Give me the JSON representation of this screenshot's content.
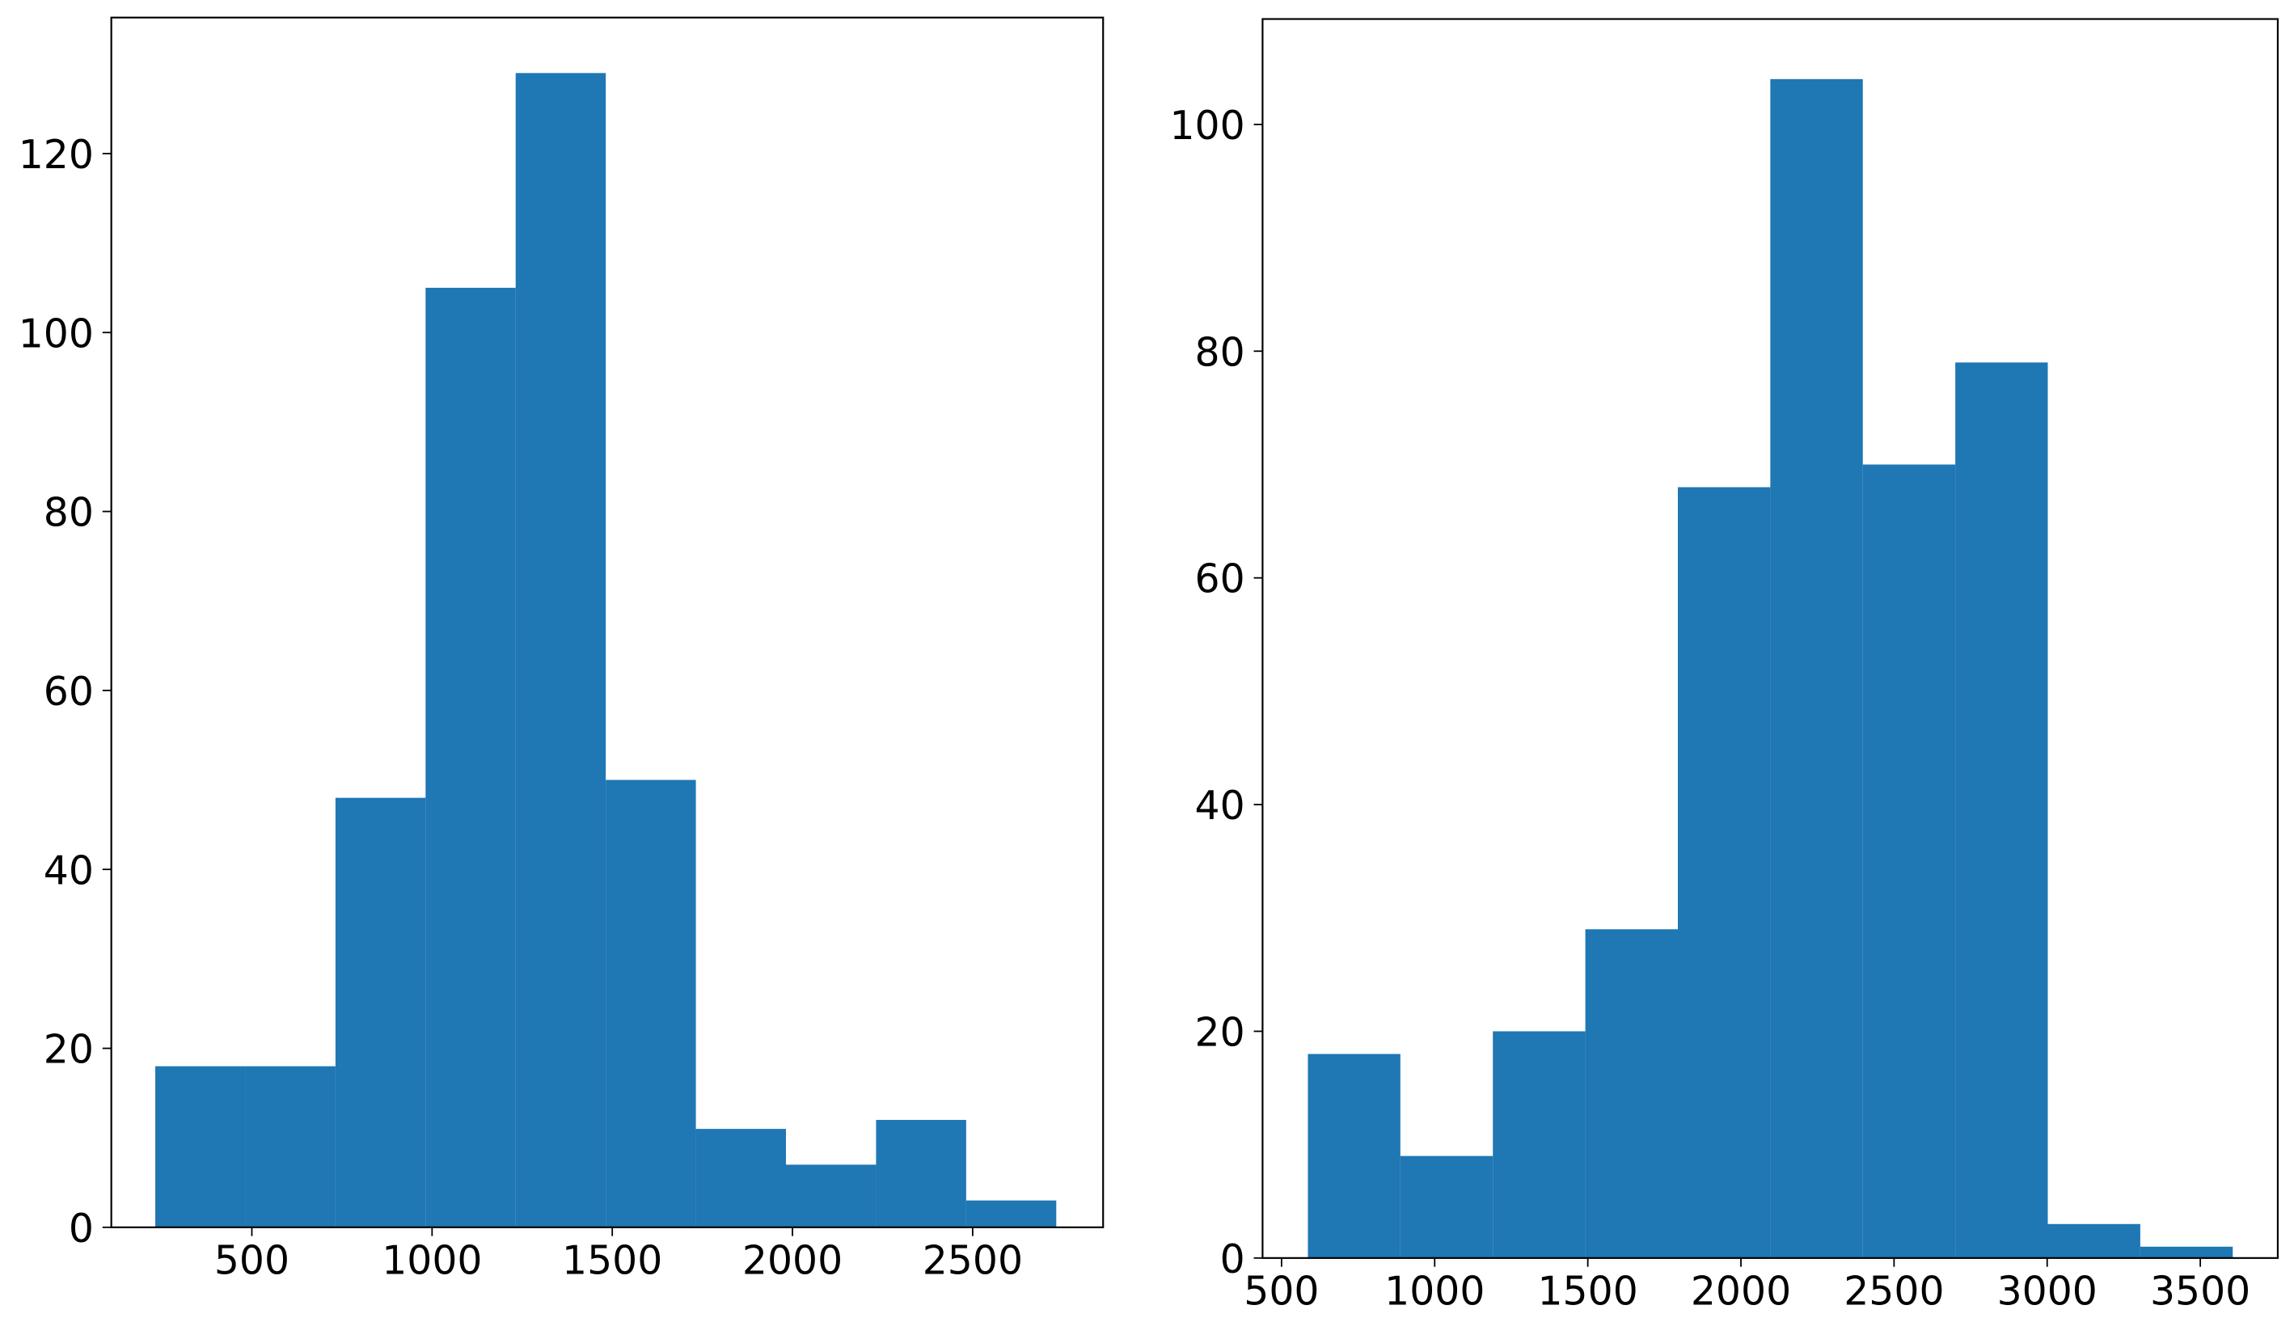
{
  "chart_data": [
    {
      "type": "histogram",
      "color": "#1f77b4",
      "bins": [
        232,
        482,
        732,
        982,
        1232,
        1482,
        1732,
        1982,
        2232,
        2482,
        2732
      ],
      "counts": [
        18,
        18,
        48,
        105,
        129,
        50,
        11,
        7,
        12,
        3
      ],
      "xlim": [
        110,
        2862
      ],
      "ylim": [
        0,
        135.2
      ],
      "xticks": [
        500,
        1000,
        1500,
        2000,
        2500
      ],
      "yticks": [
        0,
        20,
        40,
        60,
        80,
        100,
        120
      ]
    },
    {
      "type": "histogram",
      "color": "#1f77b4",
      "bins": [
        586,
        888,
        1190,
        1492,
        1794,
        2096,
        2398,
        2700,
        3002,
        3304,
        3606
      ],
      "counts": [
        18,
        9,
        20,
        29,
        68,
        104,
        70,
        79,
        3,
        1
      ],
      "xlim": [
        438,
        3753
      ],
      "ylim": [
        0,
        109.3
      ],
      "xticks": [
        500,
        1000,
        1500,
        2000,
        2500,
        3000,
        3500
      ],
      "yticks": [
        0,
        20,
        40,
        60,
        80,
        100
      ]
    }
  ]
}
